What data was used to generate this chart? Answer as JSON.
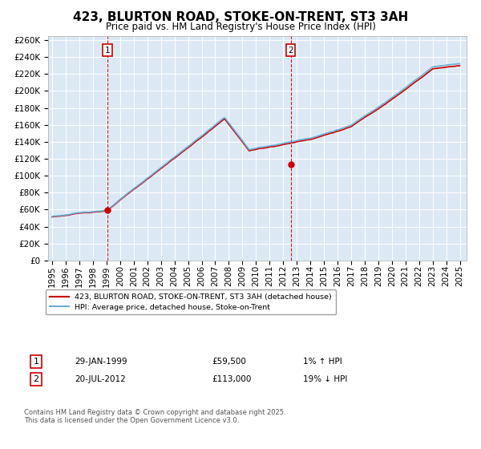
{
  "title": "423, BLURTON ROAD, STOKE-ON-TRENT, ST3 3AH",
  "subtitle": "Price paid vs. HM Land Registry's House Price Index (HPI)",
  "legend_line1": "423, BLURTON ROAD, STOKE-ON-TRENT, ST3 3AH (detached house)",
  "legend_line2": "HPI: Average price, detached house, Stoke-on-Trent",
  "annotation1_label": "1",
  "annotation1_date": "29-JAN-1999",
  "annotation1_price": "£59,500",
  "annotation1_hpi": "1% ↑ HPI",
  "annotation2_label": "2",
  "annotation2_date": "20-JUL-2012",
  "annotation2_price": "£113,000",
  "annotation2_hpi": "19% ↓ HPI",
  "footnote": "Contains HM Land Registry data © Crown copyright and database right 2025.\nThis data is licensed under the Open Government Licence v3.0.",
  "ylim": [
    0,
    260000
  ],
  "yticks": [
    0,
    20000,
    40000,
    60000,
    80000,
    100000,
    120000,
    140000,
    160000,
    180000,
    200000,
    220000,
    240000,
    260000
  ],
  "hpi_color": "#6baed6",
  "price_color": "#cc0000",
  "dashed_line_color": "#cc0000",
  "background_chart": "#dce9f5",
  "grid_color": "#ffffff",
  "purchase1_year": 1999.08,
  "purchase1_price": 59500,
  "purchase2_year": 2012.55,
  "purchase2_price": 113000,
  "title_fontsize": 11,
  "subtitle_fontsize": 9,
  "tick_fontsize": 7.5
}
